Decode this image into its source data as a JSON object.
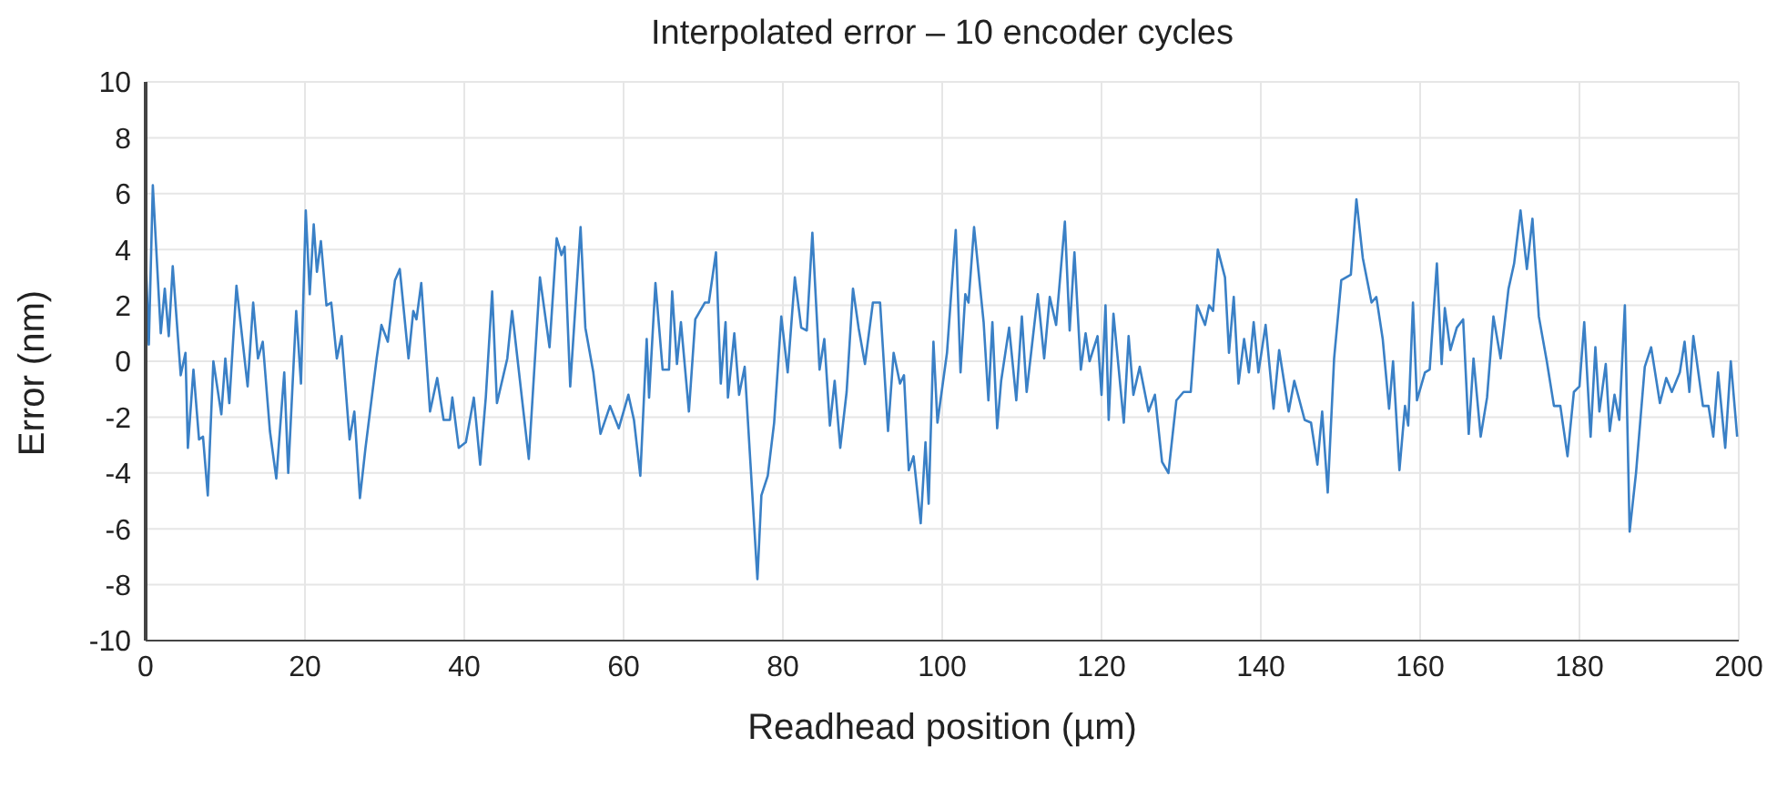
{
  "chart_data": {
    "type": "line",
    "title": "Interpolated error – 10 encoder cycles",
    "xlabel": "Readhead position (µm)",
    "ylabel": "Error (nm)",
    "xlim": [
      0,
      200
    ],
    "xticks": [
      0,
      20,
      40,
      60,
      80,
      100,
      120,
      140,
      160,
      180,
      200
    ],
    "ylim": [
      -10,
      10
    ],
    "yticks": [
      -10,
      -8,
      -6,
      -4,
      -2,
      0,
      2,
      4,
      6,
      8,
      10
    ],
    "grid": true,
    "legend": false,
    "marker": "none",
    "line_style": "solid",
    "x": [
      0,
      0.4,
      0.9,
      1.9,
      2.4,
      2.9,
      3.4,
      4.4,
      5,
      5.3,
      6,
      6.7,
      7.2,
      7.8,
      8.5,
      9.5,
      10,
      10.5,
      11.4,
      12.8,
      13.5,
      14.1,
      14.7,
      15.6,
      16.4,
      17.4,
      17.9,
      18.9,
      19.5,
      20.1,
      20.6,
      21.1,
      21.5,
      22,
      22.7,
      23.3,
      24,
      24.6,
      25.6,
      26.2,
      26.9,
      27.6,
      29,
      29.6,
      30.4,
      31.3,
      31.9,
      33,
      33.6,
      34,
      34.6,
      35.7,
      36.6,
      37.4,
      38.2,
      38.5,
      39.3,
      40.2,
      41.2,
      42,
      42.7,
      43.5,
      44.1,
      45.4,
      46,
      48.1,
      49.5,
      50.7,
      51.6,
      52.2,
      52.6,
      53.3,
      54.6,
      55.2,
      56.2,
      57.1,
      58.3,
      59.4,
      60.6,
      61.3,
      62.1,
      62.9,
      63.2,
      64,
      64.9,
      65.7,
      66.1,
      66.7,
      67.2,
      68.2,
      69,
      70.2,
      70.7,
      71.6,
      72.2,
      72.8,
      73.1,
      73.9,
      74.5,
      75.2,
      76.8,
      77.3,
      78.1,
      78.9,
      79.8,
      80.6,
      81.5,
      82.3,
      83,
      83.7,
      84.6,
      85.2,
      85.9,
      86.5,
      87.2,
      88,
      88.8,
      89.5,
      90.3,
      91.3,
      92.2,
      93.2,
      93.9,
      94.7,
      95.2,
      95.8,
      96.4,
      97.3,
      97.9,
      98.3,
      98.9,
      99.4,
      100.6,
      101.7,
      102.3,
      102.9,
      103.3,
      104,
      105.2,
      105.8,
      106.3,
      106.9,
      107.4,
      108.4,
      109.3,
      110,
      110.6,
      112,
      112.8,
      113.5,
      114.3,
      115.4,
      116,
      116.6,
      117.4,
      118,
      118.5,
      119.5,
      120,
      120.5,
      120.9,
      121.5,
      122.1,
      122.8,
      123.4,
      124,
      124.8,
      125.9,
      126.7,
      127.6,
      128.4,
      129.4,
      130.3,
      131.2,
      132,
      133,
      133.5,
      134,
      134.6,
      135.5,
      136,
      136.6,
      137.2,
      137.9,
      138.5,
      139.1,
      139.7,
      140.6,
      141.6,
      142.3,
      143.5,
      144.2,
      145.5,
      146.3,
      147.1,
      147.7,
      148.4,
      149.2,
      150.1,
      151.3,
      152,
      152.8,
      153.9,
      154.5,
      155.3,
      156.1,
      156.6,
      157.4,
      158.1,
      158.5,
      159.1,
      159.6,
      160.6,
      161.2,
      162.1,
      162.7,
      163.1,
      163.8,
      164.6,
      165.4,
      166.1,
      166.7,
      167.6,
      168.4,
      169.2,
      170.1,
      171.1,
      171.8,
      172.6,
      173.4,
      174.1,
      174.9,
      175.9,
      176.8,
      177.6,
      178.5,
      179.3,
      180,
      180.6,
      181.4,
      182,
      182.5,
      183.3,
      183.8,
      184.4,
      185,
      185.7,
      186.3,
      187.1,
      188.2,
      189,
      190.1,
      190.9,
      191.6,
      192.6,
      193.2,
      193.8,
      194.3,
      195.5,
      196.2,
      196.8,
      197.4,
      198.3,
      199,
      199.8
    ],
    "series": [
      {
        "color": "#3a80c6",
        "values": [
          3.8,
          0.6,
          6.3,
          1,
          2.6,
          0.9,
          3.4,
          -0.5,
          0.3,
          -3.1,
          -0.3,
          -2.8,
          -2.7,
          -4.8,
          0,
          -1.9,
          0.1,
          -1.5,
          2.7,
          -0.9,
          2.1,
          0.1,
          0.7,
          -2.5,
          -4.2,
          -0.4,
          -4,
          1.8,
          -0.8,
          5.4,
          2.4,
          4.9,
          3.2,
          4.3,
          2,
          2.1,
          0.1,
          0.9,
          -2.8,
          -1.8,
          -4.9,
          -3.1,
          0.1,
          1.3,
          0.7,
          2.9,
          3.3,
          0.1,
          1.8,
          1.5,
          2.8,
          -1.8,
          -0.6,
          -2.1,
          -2.1,
          -1.3,
          -3.1,
          -2.9,
          -1.3,
          -3.7,
          -1.3,
          2.5,
          -1.5,
          0.1,
          1.8,
          -3.5,
          3,
          0.5,
          4.4,
          3.8,
          4.1,
          -0.9,
          4.8,
          1.2,
          -0.4,
          -2.6,
          -1.6,
          -2.4,
          -1.2,
          -2.1,
          -4.1,
          0.8,
          -1.3,
          2.8,
          -0.3,
          -0.3,
          2.5,
          -0.1,
          1.4,
          -1.8,
          1.5,
          2.1,
          2.1,
          3.9,
          -0.8,
          1.4,
          -1.3,
          1,
          -1.2,
          -0.2,
          -7.8,
          -4.8,
          -4.1,
          -2.2,
          1.6,
          -0.4,
          3,
          1.2,
          1.1,
          4.6,
          -0.3,
          0.8,
          -2.3,
          -0.7,
          -3.1,
          -1.1,
          2.6,
          1.2,
          -0.1,
          2.1,
          2.1,
          -2.5,
          0.3,
          -0.8,
          -0.5,
          -3.9,
          -3.4,
          -5.8,
          -2.9,
          -5.1,
          0.7,
          -2.2,
          0.3,
          4.7,
          -0.4,
          2.4,
          2.1,
          4.8,
          1.4,
          -1.4,
          1.4,
          -2.4,
          -0.7,
          1.2,
          -1.4,
          1.6,
          -1.1,
          2.4,
          0.1,
          2.3,
          1.3,
          5,
          1.1,
          3.9,
          -0.3,
          1,
          0,
          0.9,
          -1.2,
          2,
          -2.1,
          1.7,
          -0.1,
          -2.2,
          0.9,
          -1.2,
          -0.2,
          -1.8,
          -1.2,
          -3.6,
          -4,
          -1.4,
          -1.1,
          -1.1,
          2,
          1.3,
          2,
          1.8,
          4,
          3,
          0.3,
          2.3,
          -0.8,
          0.8,
          -0.4,
          1.4,
          -0.4,
          1.3,
          -1.7,
          0.4,
          -1.8,
          -0.7,
          -2.1,
          -2.2,
          -3.7,
          -1.8,
          -4.7,
          0.1,
          2.9,
          3.1,
          5.8,
          3.7,
          2.1,
          2.3,
          0.8,
          -1.7,
          0,
          -3.9,
          -1.6,
          -2.3,
          2.1,
          -1.4,
          -0.4,
          -0.3,
          3.5,
          -0.1,
          1.9,
          0.4,
          1.2,
          1.5,
          -2.6,
          0.1,
          -2.7,
          -1.3,
          1.6,
          0.1,
          2.6,
          3.5,
          5.4,
          3.3,
          5.1,
          1.6,
          0,
          -1.6,
          -1.6,
          -3.4,
          -1.1,
          -0.9,
          1.4,
          -2.7,
          0.5,
          -1.8,
          -0.1,
          -2.5,
          -1.2,
          -2.1,
          2,
          -6.1,
          -4,
          -0.2,
          0.5,
          -1.5,
          -0.6,
          -1.1,
          -0.4,
          0.7,
          -1.1,
          0.9,
          -1.6,
          -1.6,
          -2.7,
          -0.4,
          -3.1,
          0,
          -2.7
        ]
      }
    ]
  }
}
